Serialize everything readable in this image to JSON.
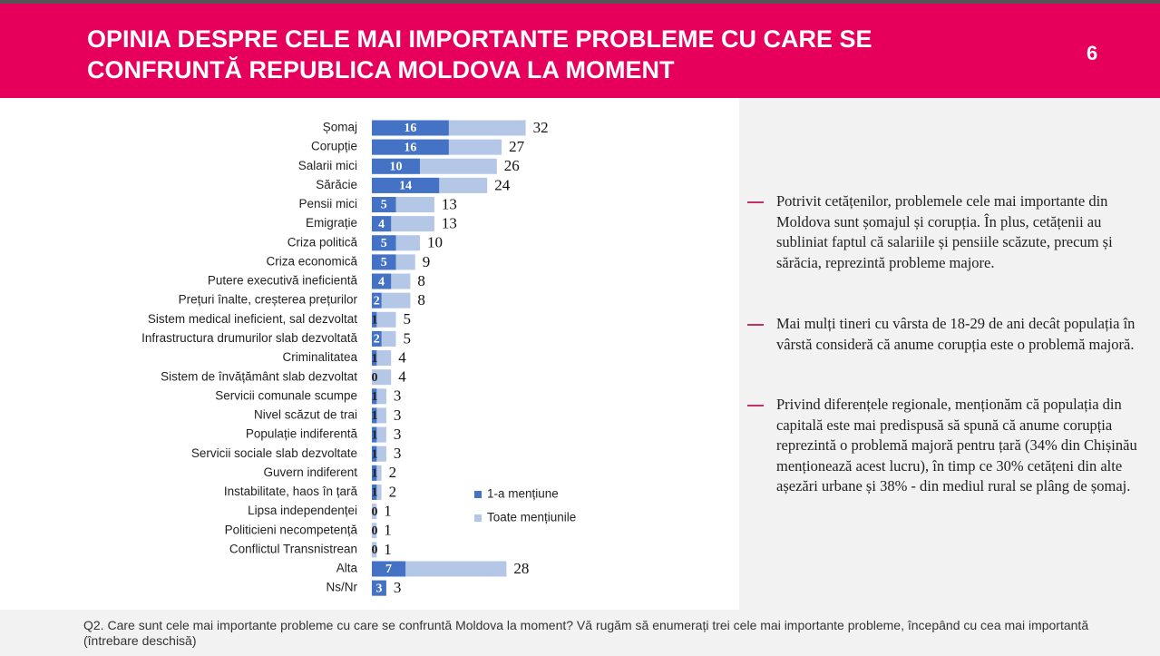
{
  "header": {
    "title": "OPINIA DESPRE CELE MAI IMPORTANTE PROBLEME CU CARE SE CONFRUNTĂ REPUBLICA MOLDOVA LA MOMENT",
    "page_number": "6"
  },
  "chart_data": {
    "type": "bar",
    "orientation": "horizontal",
    "categories": [
      "Șomaj",
      "Corupție",
      "Salarii mici",
      "Sărăcie",
      "Pensii mici",
      "Emigrație",
      "Criza politică",
      "Criza economică",
      "Putere executivă ineficientă",
      "Prețuri înalte, creșterea prețurilor",
      "Sistem medical ineficient, sal dezvoltat",
      "Infrastructura drumurilor slab dezvoltată",
      "Criminalitatea",
      "Sistem de învățământ slab dezvoltat",
      "Servicii comunale scumpe",
      "Nivel scăzut de trai",
      "Populație indiferentă",
      "Servicii sociale slab dezvoltate",
      "Guvern indiferent",
      "Instabilitate, haos în țară",
      "Lipsa independenței",
      "Politicieni necompetență",
      "Conflictul Transnistrean",
      "Alta",
      "Ns/Nr"
    ],
    "series": [
      {
        "name": "Toate mențiunile",
        "color": "#b4c7e7",
        "values": [
          32,
          27,
          26,
          24,
          13,
          13,
          10,
          9,
          8,
          8,
          5,
          5,
          4,
          4,
          3,
          3,
          3,
          3,
          2,
          2,
          1,
          1,
          1,
          28,
          3
        ]
      },
      {
        "name": "1-a mențiune",
        "color": "#4472c4",
        "values": [
          16,
          16,
          10,
          14,
          5,
          4,
          5,
          5,
          4,
          2,
          1,
          2,
          1,
          0,
          1,
          1,
          1,
          1,
          1,
          1,
          0,
          0,
          0,
          7,
          3
        ]
      }
    ]
  },
  "notes": [
    "Potrivit cetățenilor, problemele cele mai importante din Moldova sunt șomajul și corupția. În plus, cetățenii au subliniat faptul că salariile și pensiile scăzute, precum și sărăcia, reprezintă probleme majore.",
    "Mai mulți tineri cu vârsta de 18-29 de ani decât populația în vârstă consideră că anume corupția este o problemă majoră.",
    "Privind diferențele regionale, menționăm că populația din capitală este mai predispusă să spună că anume corupția reprezintă o problemă majoră pentru țară (34% din Chișinău menționează acest lucru), în timp ce 30% cetățeni din alte așezări urbane și 38% - din mediul rural se plâng de șomaj."
  ],
  "footnote": "Q2. Care sunt cele mai importante probleme cu care se confruntă Moldova la moment? Vă rugăm să enumerați trei cele mai importante probleme, începând cu cea mai importantă (întrebare deschisă)"
}
